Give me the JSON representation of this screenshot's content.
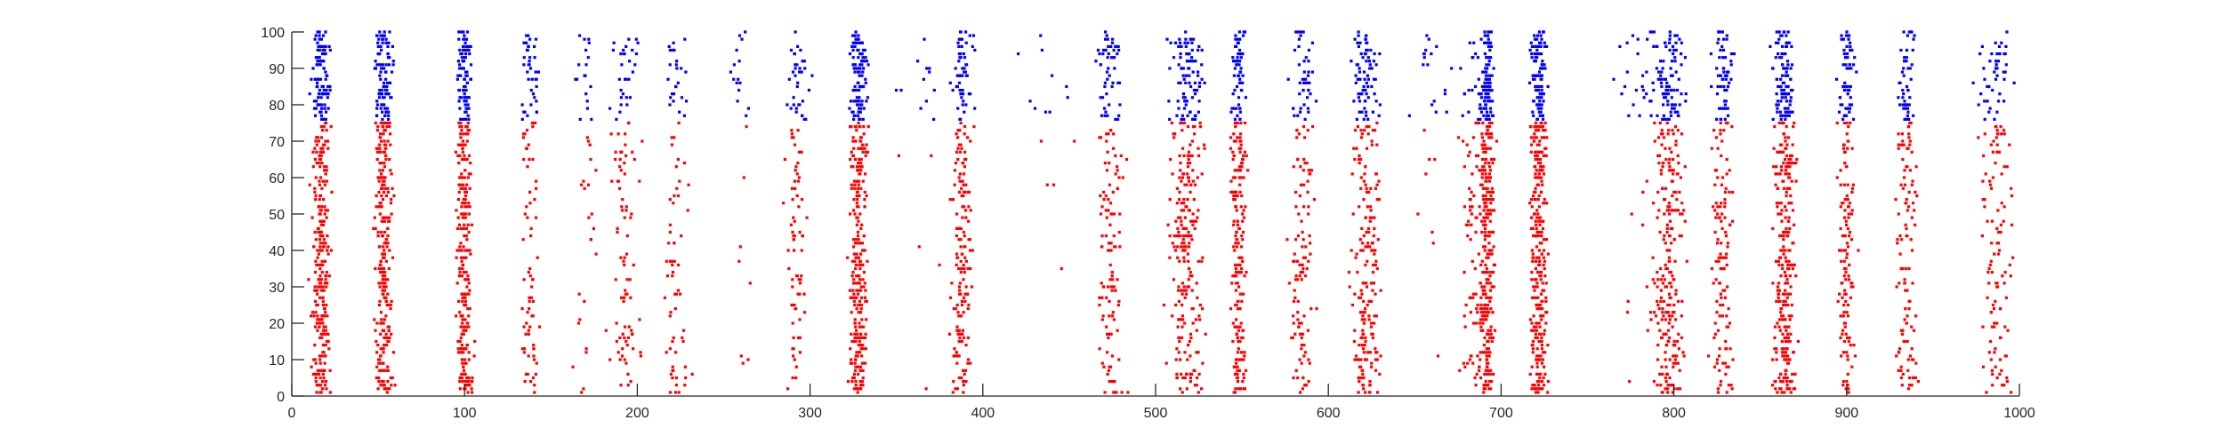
{
  "chart_data": {
    "type": "scatter",
    "subtype": "raster-plot",
    "title": "",
    "xlabel": "",
    "ylabel": "",
    "xlim": [
      0,
      1000
    ],
    "ylim": [
      0,
      100
    ],
    "xticks": [
      0,
      100,
      200,
      300,
      400,
      500,
      600,
      700,
      800,
      900,
      1000
    ],
    "yticks": [
      0,
      10,
      20,
      30,
      40,
      50,
      60,
      70,
      80,
      90,
      100
    ],
    "grid": false,
    "legend": "none",
    "series": [
      {
        "color": "#ff0000",
        "y_range": [
          1,
          75
        ]
      },
      {
        "color": "#0000ff",
        "y_range": [
          76,
          100
        ]
      }
    ],
    "bursts": [
      {
        "t": 17,
        "w": 5,
        "exc": 260,
        "inh": 100
      },
      {
        "t": 53,
        "w": 5,
        "exc": 260,
        "inh": 100
      },
      {
        "t": 100,
        "w": 4,
        "exc": 230,
        "inh": 90
      },
      {
        "t": 138,
        "w": 5,
        "exc": 70,
        "inh": 40
      },
      {
        "t": 170,
        "w": 6,
        "exc": 25,
        "inh": 18
      },
      {
        "t": 193,
        "w": 8,
        "exc": 80,
        "inh": 30
      },
      {
        "t": 223,
        "w": 6,
        "exc": 60,
        "inh": 25
      },
      {
        "t": 260,
        "w": 6,
        "exc": 8,
        "inh": 15
      },
      {
        "t": 292,
        "w": 6,
        "exc": 70,
        "inh": 35
      },
      {
        "t": 328,
        "w": 5,
        "exc": 260,
        "inh": 100
      },
      {
        "t": 365,
        "w": 12,
        "exc": 5,
        "inh": 12
      },
      {
        "t": 388,
        "w": 6,
        "exc": 160,
        "inh": 55
      },
      {
        "t": 440,
        "w": 16,
        "exc": 5,
        "inh": 10
      },
      {
        "t": 474,
        "w": 7,
        "exc": 110,
        "inh": 50
      },
      {
        "t": 518,
        "w": 10,
        "exc": 220,
        "inh": 90
      },
      {
        "t": 548,
        "w": 4,
        "exc": 190,
        "inh": 60
      },
      {
        "t": 585,
        "w": 7,
        "exc": 110,
        "inh": 45
      },
      {
        "t": 622,
        "w": 8,
        "exc": 190,
        "inh": 75
      },
      {
        "t": 660,
        "w": 10,
        "exc": 8,
        "inh": 18
      },
      {
        "t": 685,
        "w": 8,
        "exc": 90,
        "inh": 25
      },
      {
        "t": 692,
        "w": 4,
        "exc": 240,
        "inh": 95
      },
      {
        "t": 722,
        "w": 5,
        "exc": 280,
        "inh": 100
      },
      {
        "t": 780,
        "w": 12,
        "exc": 10,
        "inh": 25
      },
      {
        "t": 797,
        "w": 9,
        "exc": 230,
        "inh": 90
      },
      {
        "t": 828,
        "w": 6,
        "exc": 120,
        "inh": 60
      },
      {
        "t": 864,
        "w": 6,
        "exc": 260,
        "inh": 100
      },
      {
        "t": 900,
        "w": 5,
        "exc": 120,
        "inh": 60
      },
      {
        "t": 935,
        "w": 6,
        "exc": 110,
        "inh": 50
      },
      {
        "t": 987,
        "w": 9,
        "exc": 110,
        "inh": 45
      }
    ]
  }
}
